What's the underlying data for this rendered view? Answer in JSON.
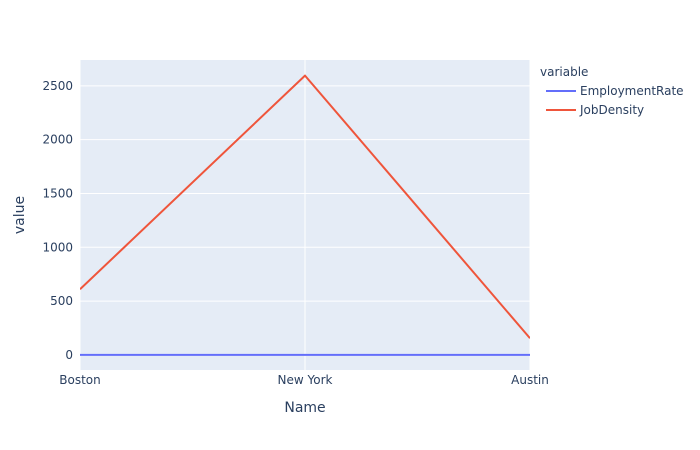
{
  "chart_data": {
    "type": "line",
    "x": [
      "Boston",
      "New York",
      "Austin"
    ],
    "xlabel": "Name",
    "ylabel": "value",
    "ylim": [
      -140,
      2740
    ],
    "yticks": [
      0,
      500,
      1000,
      1500,
      2000,
      2500
    ],
    "grid": true,
    "legend": {
      "title": "variable",
      "placement": "top-right"
    },
    "series": [
      {
        "name": "EmploymentRate",
        "values": [
          0.9,
          0.93,
          0.92
        ],
        "color": "#636efa"
      },
      {
        "name": "JobDensity",
        "values": [
          610,
          2595,
          155
        ],
        "color": "#ef553b"
      }
    ],
    "colors": {
      "plot_background": "#e5ecf6",
      "gridline": "#ffffff",
      "text": "#2a3f5f"
    }
  }
}
